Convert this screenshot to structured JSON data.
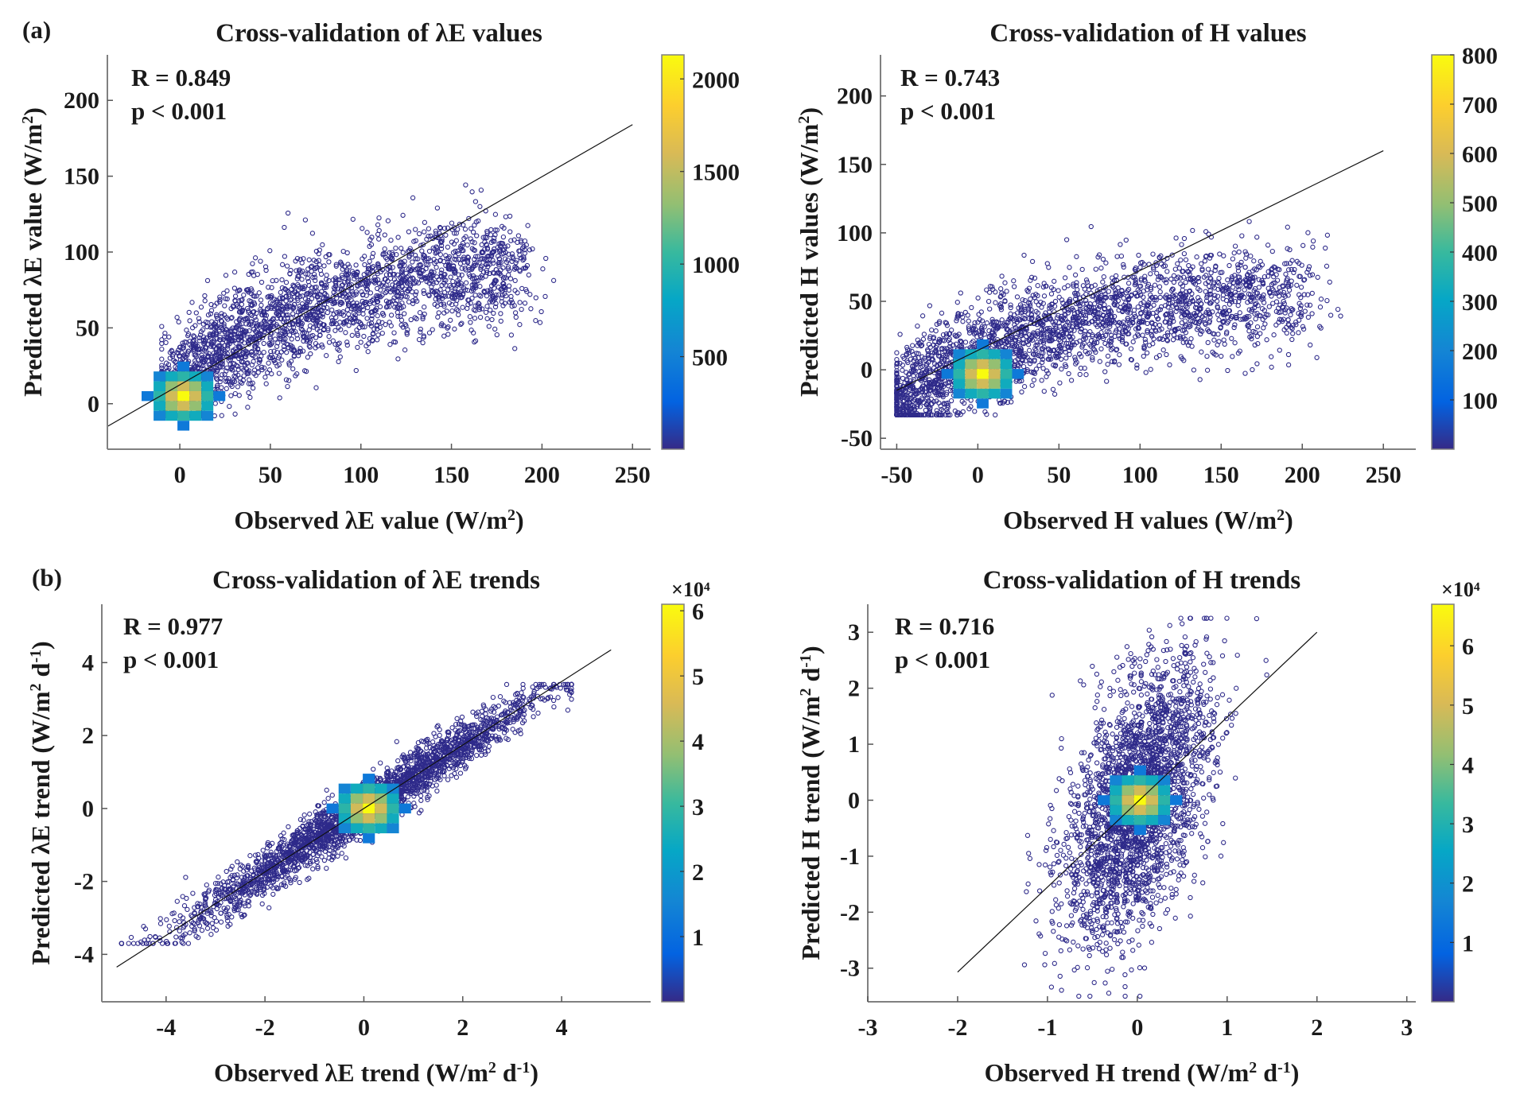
{
  "figure": {
    "panel_labels": [
      "(a)",
      "(b)"
    ]
  },
  "chart_data": [
    {
      "type": "scatter",
      "id": "le_values",
      "title": "Cross-validation of λE values",
      "xlabel": "Observed λE value (W/m²)",
      "ylabel": "Predicted λE value (W/m²)",
      "xlabel_parts": [
        "Observed λE value (W/m",
        "2",
        ")"
      ],
      "ylabel_parts": [
        "Predicted λE value (W/m",
        "2",
        ")"
      ],
      "xlim": [
        -40,
        260
      ],
      "ylim": [
        -30,
        230
      ],
      "xticks": [
        0,
        50,
        100,
        150,
        200,
        250
      ],
      "yticks": [
        0,
        50,
        100,
        150,
        200
      ],
      "annotation": {
        "R": "R = 0.849",
        "p": "p < 0.001"
      },
      "r": 0.849,
      "p_text": "p<0.001",
      "fit_line": {
        "x": [
          -40,
          250
        ],
        "y": [
          -15,
          184
        ]
      },
      "scatter_shape": {
        "x_range": [
          -10,
          222
        ],
        "y_range": [
          -8,
          155
        ],
        "center": [
          60,
          55
        ],
        "curve": "saturating"
      },
      "hotspot": {
        "x": 2,
        "y": 5
      },
      "colorbar": {
        "label_exponent": "",
        "ticks": [
          500,
          1000,
          1500,
          2000
        ],
        "tick_labels": [
          "500",
          "1000",
          "1500",
          "2000"
        ],
        "range": [
          0,
          2130
        ]
      },
      "grid": false
    },
    {
      "type": "scatter",
      "id": "h_values",
      "title": "Cross-validation of H values",
      "xlabel": "Observed H values (W/m²)",
      "ylabel": "Predicted H values (W/m²)",
      "xlabel_parts": [
        "Observed H values (W/m",
        "2",
        ")"
      ],
      "ylabel_parts": [
        "Predicted H values (W/m",
        "2",
        ")"
      ],
      "xlim": [
        -60,
        270
      ],
      "ylim": [
        -58,
        230
      ],
      "xticks": [
        -50,
        0,
        50,
        100,
        150,
        200,
        250
      ],
      "yticks": [
        -50,
        0,
        50,
        100,
        150,
        200
      ],
      "annotation": {
        "R": "R = 0.743",
        "p": "p < 0.001"
      },
      "r": 0.743,
      "p_text": "p<0.001",
      "fit_line": {
        "x": [
          -50,
          250
        ],
        "y": [
          -15,
          160
        ]
      },
      "scatter_shape": {
        "x_range": [
          -50,
          247
        ],
        "y_range": [
          -33,
          140
        ],
        "center": [
          50,
          45
        ],
        "curve": "saturating"
      },
      "hotspot": {
        "x": 3,
        "y": -3
      },
      "colorbar": {
        "label_exponent": "",
        "ticks": [
          100,
          200,
          300,
          400,
          500,
          600,
          700,
          800
        ],
        "tick_labels": [
          "100",
          "200",
          "300",
          "400",
          "500",
          "600",
          "700",
          "800"
        ],
        "range": [
          0,
          800
        ]
      },
      "grid": false
    },
    {
      "type": "scatter",
      "id": "le_trends",
      "title": "Cross-validation of λE trends",
      "xlabel": "Observed λE trend (W/m² d⁻¹)",
      "ylabel": "Predicted λE trend (W/m² d⁻¹)",
      "xlabel_parts": [
        "Observed λE trend (W/m",
        "2",
        " d",
        "-1",
        ")"
      ],
      "ylabel_parts": [
        "Predicted λE trend (W/m",
        "2",
        " d",
        "-1",
        ")"
      ],
      "xlim": [
        -5.3,
        5.8
      ],
      "ylim": [
        -5.3,
        5.6
      ],
      "xticks": [
        -4,
        -2,
        0,
        2,
        4
      ],
      "yticks": [
        -4,
        -2,
        0,
        2,
        4
      ],
      "annotation": {
        "R": "R = 0.977",
        "p": "p < 0.001"
      },
      "r": 0.977,
      "p_text": "p<0.001",
      "fit_line": {
        "x": [
          -5,
          5
        ],
        "y": [
          -4.35,
          4.35
        ]
      },
      "scatter_shape": {
        "x_range": [
          -4.9,
          4.2
        ],
        "y_range": [
          -3.7,
          3.4
        ],
        "center": [
          0,
          0
        ],
        "curve": "linear"
      },
      "hotspot": {
        "x": 0.1,
        "y": 0
      },
      "colorbar": {
        "label_exponent": "×10⁴",
        "ticks": [
          10000,
          20000,
          30000,
          40000,
          50000,
          60000
        ],
        "tick_labels": [
          "1",
          "2",
          "3",
          "4",
          "5",
          "6"
        ],
        "range": [
          0,
          61000
        ]
      },
      "grid": false
    },
    {
      "type": "scatter",
      "id": "h_trends",
      "title": "Cross-validation of H trends",
      "xlabel": "Observed H trend (W/m² d⁻¹)",
      "ylabel": "Predicted H trend (W/m² d⁻¹)",
      "xlabel_parts": [
        "Observed H trend (W/m",
        "2",
        " d",
        "-1",
        ")"
      ],
      "ylabel_parts": [
        "Predicted H trend (W/m",
        "2",
        " d",
        "-1",
        ")"
      ],
      "xlim": [
        -3,
        3.1
      ],
      "ylim": [
        -3.6,
        3.5
      ],
      "xticks": [
        -3,
        -2,
        -1,
        0,
        1,
        2,
        3
      ],
      "yticks": [
        -3,
        -2,
        -1,
        0,
        1,
        2,
        3
      ],
      "annotation": {
        "R": "R = 0.716",
        "p": "p < 0.001"
      },
      "r": 0.716,
      "p_text": "p<0.001",
      "fit_line": {
        "x": [
          -2,
          2
        ],
        "y": [
          -3.07,
          3
        ]
      },
      "scatter_shape": {
        "x_range": [
          -1.6,
          1.75
        ],
        "y_range": [
          -3.5,
          3.25
        ],
        "center": [
          0,
          0
        ],
        "curve": "linear"
      },
      "hotspot": {
        "x": 0.03,
        "y": 0
      },
      "colorbar": {
        "label_exponent": "×10⁴",
        "ticks": [
          10000,
          20000,
          30000,
          40000,
          50000,
          60000
        ],
        "tick_labels": [
          "1",
          "2",
          "3",
          "4",
          "5",
          "6"
        ],
        "range": [
          0,
          67000
        ]
      },
      "grid": false
    }
  ]
}
